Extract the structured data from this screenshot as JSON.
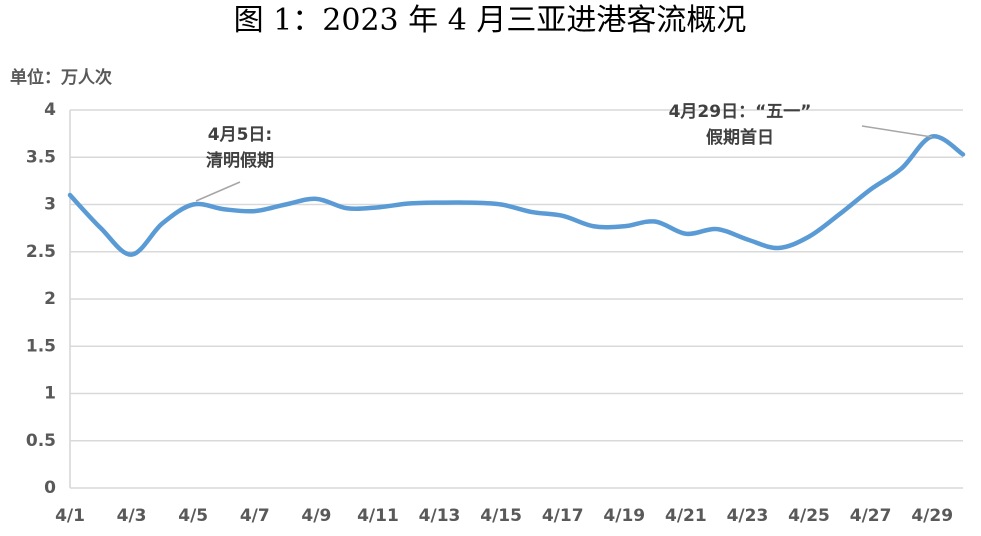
{
  "chart_data": {
    "type": "line",
    "title": "图 1：2023 年 4 月三亚进港客流概况",
    "y_label": "单位：万人次",
    "categories": [
      "4/1",
      null,
      "4/3",
      null,
      "4/5",
      null,
      "4/7",
      null,
      "4/9",
      null,
      "4/11",
      null,
      "4/13",
      null,
      "4/15",
      null,
      "4/17",
      null,
      "4/19",
      null,
      "4/21",
      null,
      "4/23",
      null,
      "4/25",
      null,
      "4/27",
      null,
      "4/29",
      null
    ],
    "values": [
      3.1,
      2.75,
      2.47,
      2.8,
      3.0,
      2.95,
      2.93,
      3.0,
      3.06,
      2.96,
      2.97,
      3.01,
      3.02,
      3.02,
      3.0,
      2.92,
      2.88,
      2.77,
      2.77,
      2.82,
      2.69,
      2.74,
      2.63,
      2.54,
      2.66,
      2.9,
      3.16,
      3.38,
      3.72,
      3.53
    ],
    "color": "#5b9bd5",
    "ylim": [
      0,
      4
    ],
    "yticks": [
      0,
      0.5,
      1,
      1.5,
      2,
      2.5,
      3,
      3.5,
      4
    ],
    "grid": true,
    "annotations": [
      {
        "lines": [
          "4月5日:",
          "清明假期"
        ]
      },
      {
        "lines": [
          "4月29日：“五一”",
          "假期首日"
        ]
      }
    ]
  }
}
